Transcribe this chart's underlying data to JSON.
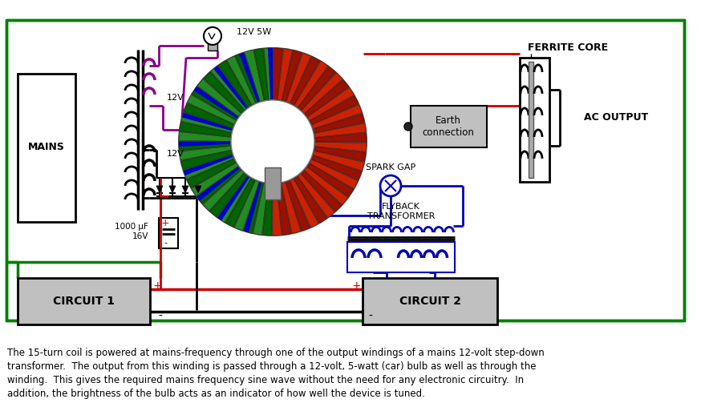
{
  "bg_color": "#ffffff",
  "green": "#008000",
  "red": "#cc0000",
  "blue": "#0000bb",
  "purple": "#880088",
  "black": "#000000",
  "light_gray": "#c0c0c0",
  "dark_gray": "#555555",
  "mid_gray": "#999999",
  "caption": "The 15-turn coil is powered at mains-frequency through one of the output windings of a mains 12-volt step-down\ntransformer.  The output from this winding is passed through a 12-volt, 5-watt (car) bulb as well as through the\nwinding.  This gives the required mains frequency sine wave without the need for any electronic circuitry.  In\naddition, the brightness of the bulb acts as an indicator of how well the device is tuned.",
  "label_mains": "MAINS",
  "label_12v_top": "12V",
  "label_12v_bot": "12V",
  "label_bulb": "12V 5W",
  "label_cap": "1000 μF\n16V",
  "label_ferrite": "FERRITE CORE",
  "label_ac": "AC OUTPUT",
  "label_earth": "Earth\nconnection",
  "label_spark": "SPARK GAP",
  "label_flyback": "FLYBACK\nTRANSFORMER",
  "label_circuit1": "CIRCUIT 1",
  "label_circuit2": "CIRCUIT 2",
  "figsize": [
    8.74,
    5.23
  ],
  "dpi": 100
}
